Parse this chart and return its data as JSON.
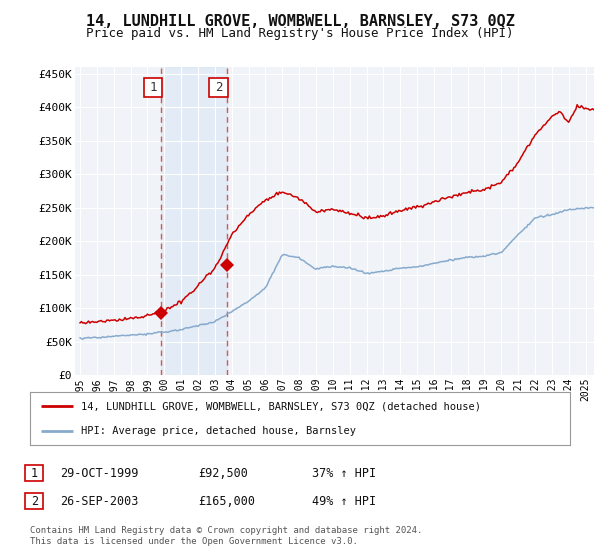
{
  "title": "14, LUNDHILL GROVE, WOMBWELL, BARNSLEY, S73 0QZ",
  "subtitle": "Price paid vs. HM Land Registry's House Price Index (HPI)",
  "yticks": [
    0,
    50000,
    100000,
    150000,
    200000,
    250000,
    300000,
    350000,
    400000,
    450000
  ],
  "ytick_labels": [
    "£0",
    "£50K",
    "£100K",
    "£150K",
    "£200K",
    "£250K",
    "£300K",
    "£350K",
    "£400K",
    "£450K"
  ],
  "xlim_start": 1994.7,
  "xlim_end": 2025.5,
  "ylim_min": 0,
  "ylim_max": 460000,
  "sale1_date": 1999.83,
  "sale1_price": 92500,
  "sale2_date": 2003.73,
  "sale2_price": 165000,
  "red_color": "#cc0000",
  "blue_color": "#88aacc",
  "vline_color": "#dd4444",
  "background_color": "#ffffff",
  "plot_bg_color": "#f0f4f8",
  "legend_label_red": "14, LUNDHILL GROVE, WOMBWELL, BARNSLEY, S73 0QZ (detached house)",
  "legend_label_blue": "HPI: Average price, detached house, Barnsley",
  "table_row1": [
    "1",
    "29-OCT-1999",
    "£92,500",
    "37% ↑ HPI"
  ],
  "table_row2": [
    "2",
    "26-SEP-2003",
    "£165,000",
    "49% ↑ HPI"
  ],
  "footnote": "Contains HM Land Registry data © Crown copyright and database right 2024.\nThis data is licensed under the Open Government Licence v3.0.",
  "title_fontsize": 11,
  "subtitle_fontsize": 9
}
